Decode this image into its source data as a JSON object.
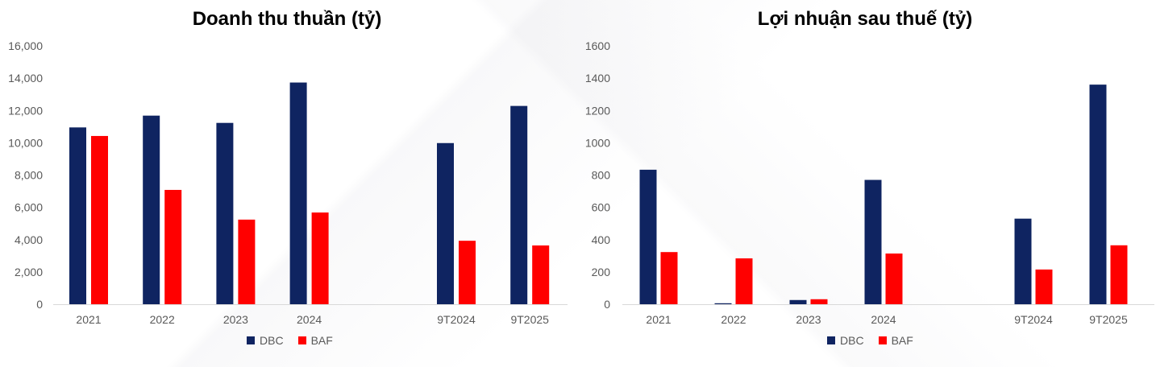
{
  "charts": {
    "revenue": {
      "title": "Doanh thu thuần (tỷ)",
      "legend": [
        "DBC",
        "BAF"
      ]
    },
    "profit": {
      "title": "Lợi nhuận sau thuế (tỷ)",
      "legend": [
        "DBC",
        "BAF"
      ]
    }
  },
  "colors": {
    "dbc": "#0f2461",
    "baf": "#ff0000",
    "axis": "#d9d9d9",
    "tick": "#595959"
  },
  "chart_data": [
    {
      "type": "bar",
      "title": "Doanh thu thuần (tỷ)",
      "categories": [
        "2021",
        "2022",
        "2023",
        "2024",
        "",
        "9T2024",
        "9T2025"
      ],
      "ytick_labels": [
        "0",
        "2,000",
        "4,000",
        "6,000",
        "8,000",
        "10,000",
        "12,000",
        "14,000",
        "16,000"
      ],
      "ylim": [
        0,
        16000
      ],
      "series": [
        {
          "name": "DBC",
          "values": [
            10950,
            11680,
            11230,
            13730,
            null,
            9980,
            12280
          ]
        },
        {
          "name": "BAF",
          "values": [
            10420,
            7080,
            5240,
            5680,
            null,
            3930,
            3640
          ]
        }
      ],
      "legend_position": "bottom",
      "grid": false
    },
    {
      "type": "bar",
      "title": "Lợi nhuận sau thuế (tỷ)",
      "categories": [
        "2021",
        "2022",
        "2023",
        "2024",
        "",
        "9T2024",
        "9T2025"
      ],
      "ytick_labels": [
        "0",
        "200",
        "400",
        "600",
        "800",
        "1000",
        "1200",
        "1400",
        "1600"
      ],
      "ylim": [
        0,
        1600
      ],
      "series": [
        {
          "name": "DBC",
          "values": [
            833,
            6,
            26,
            770,
            null,
            530,
            1360
          ]
        },
        {
          "name": "BAF",
          "values": [
            323,
            284,
            31,
            314,
            null,
            215,
            365
          ]
        }
      ],
      "legend_position": "bottom",
      "grid": false
    }
  ]
}
